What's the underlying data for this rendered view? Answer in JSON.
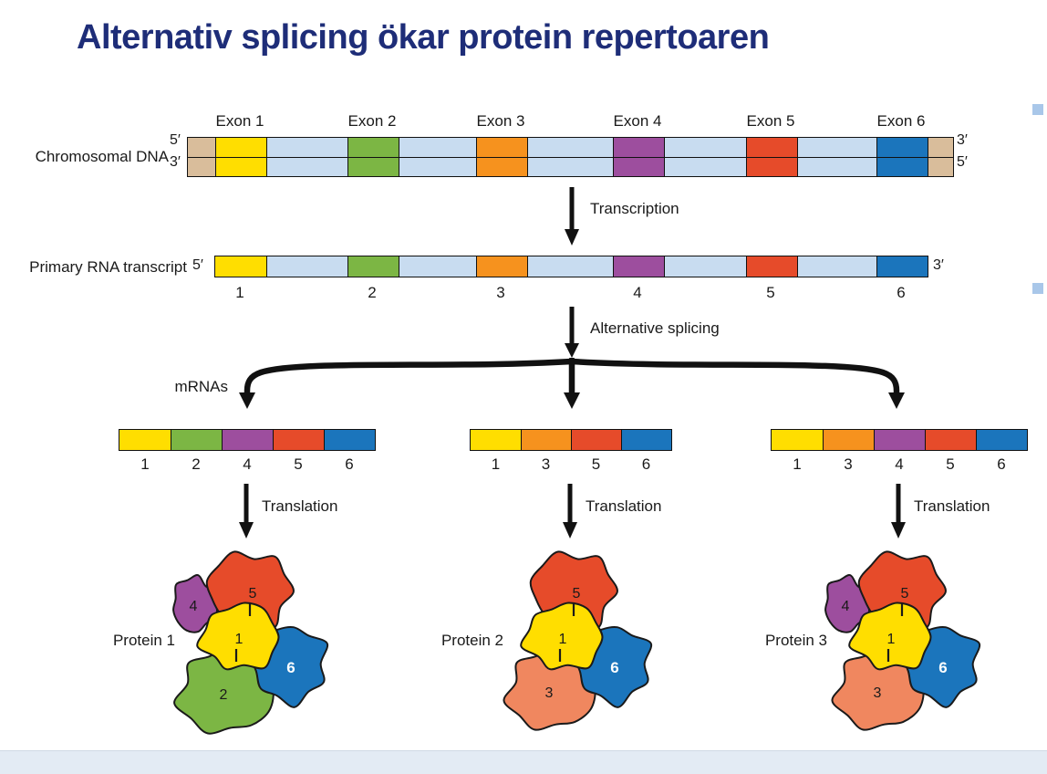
{
  "page": {
    "title": "Alternativ splicing ökar protein repertoaren"
  },
  "colors": {
    "title_text": "#1e2d78",
    "exons": [
      "#FFDE00",
      "#7CB644",
      "#F6921E",
      "#9D4E9E",
      "#E64B2A",
      "#1B75BC"
    ],
    "intron": "#C8DCF0",
    "dna_end_cap": "#D9BD9B",
    "protein_subunits": {
      "1": "#FFDE00",
      "2": "#7CB644",
      "3": "#F0875F",
      "4": "#9D4E9E",
      "5": "#E64B2A",
      "6": "#1B75BC"
    },
    "footer_strip": "#e3ebf4",
    "scroll_square": "#a9c7e9"
  },
  "dna": {
    "label": "Chromosomal DNA",
    "exon_labels": [
      "Exon 1",
      "Exon 2",
      "Exon 3",
      "Exon 4",
      "Exon 5",
      "Exon 6"
    ],
    "left_top_end": "5′",
    "left_bottom_end": "3′",
    "right_top_end": "3′",
    "right_bottom_end": "5′"
  },
  "transcription": {
    "label": "Transcription"
  },
  "primary_transcript": {
    "label": "Primary RNA transcript",
    "left_end": "5′",
    "right_end": "3′",
    "exon_numbers": [
      "1",
      "2",
      "3",
      "4",
      "5",
      "6"
    ]
  },
  "splicing": {
    "label": "Alternative splicing",
    "mrnas_label": "mRNAs"
  },
  "translation": {
    "label": "Translation"
  },
  "mrnas": [
    {
      "exons": [
        "1",
        "2",
        "4",
        "5",
        "6"
      ]
    },
    {
      "exons": [
        "1",
        "3",
        "5",
        "6"
      ]
    },
    {
      "exons": [
        "1",
        "3",
        "4",
        "5",
        "6"
      ]
    }
  ],
  "proteins": [
    {
      "label": "Protein 1",
      "subunits": [
        "1",
        "2",
        "4",
        "5",
        "6"
      ]
    },
    {
      "label": "Protein 2",
      "subunits": [
        "1",
        "3",
        "5",
        "6"
      ]
    },
    {
      "label": "Protein 3",
      "subunits": [
        "1",
        "3",
        "4",
        "5",
        "6"
      ]
    }
  ]
}
